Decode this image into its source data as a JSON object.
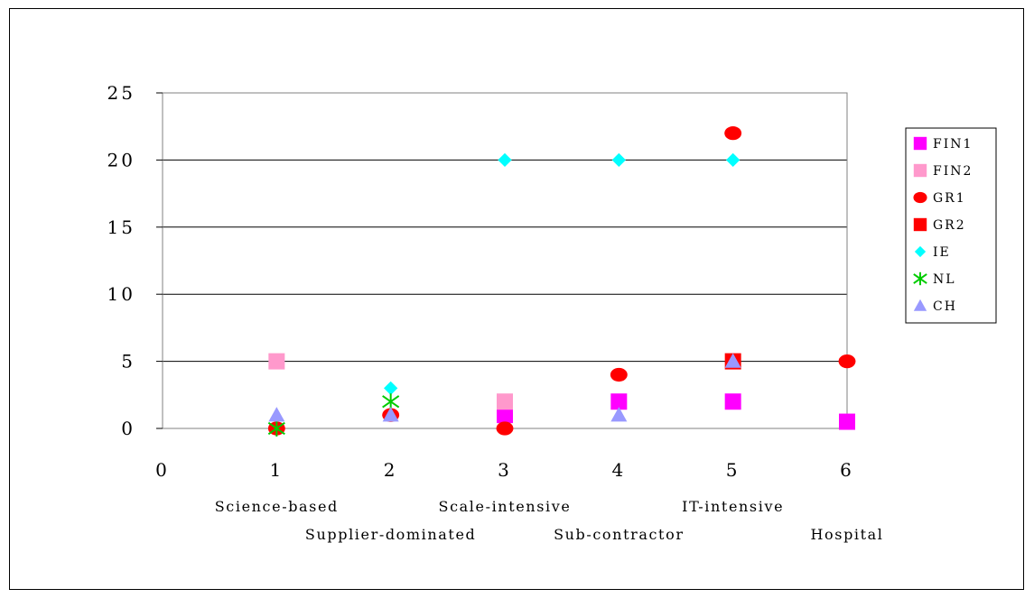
{
  "chart_data": {
    "type": "scatter",
    "title": "",
    "xlabel": "",
    "ylabel": "",
    "xlim": [
      0,
      6
    ],
    "ylim": [
      0,
      25
    ],
    "x_ticks": [
      0,
      1,
      2,
      3,
      4,
      5,
      6
    ],
    "y_ticks": [
      0,
      5,
      10,
      15,
      20,
      25
    ],
    "grid": "horizontal",
    "legend_position": "right",
    "category_labels": [
      {
        "x": 1,
        "label": "Science-based",
        "row": 1
      },
      {
        "x": 2,
        "label": "Supplier-dominated",
        "row": 2
      },
      {
        "x": 3,
        "label": "Scale-intensive",
        "row": 1
      },
      {
        "x": 4,
        "label": "Sub-contractor",
        "row": 2
      },
      {
        "x": 5,
        "label": "IT-intensive",
        "row": 1
      },
      {
        "x": 6,
        "label": "Hospital",
        "row": 2
      }
    ],
    "series": [
      {
        "name": "FIN1",
        "marker": "square",
        "color": "#ff00ff",
        "points": [
          [
            3,
            1
          ],
          [
            4,
            2
          ],
          [
            5,
            2
          ],
          [
            6,
            0.5
          ]
        ]
      },
      {
        "name": "FIN2",
        "marker": "square",
        "color": "#ff99cc",
        "points": [
          [
            1,
            5
          ],
          [
            3,
            2
          ]
        ]
      },
      {
        "name": "GR1",
        "marker": "circle",
        "color": "#ff0000",
        "points": [
          [
            1,
            0
          ],
          [
            2,
            1
          ],
          [
            3,
            0
          ],
          [
            4,
            4
          ],
          [
            5,
            22
          ],
          [
            6,
            5
          ]
        ]
      },
      {
        "name": "GR2",
        "marker": "square",
        "color": "#ff0000",
        "points": [
          [
            5,
            5
          ]
        ]
      },
      {
        "name": "IE",
        "marker": "diamond",
        "color": "#00ffff",
        "points": [
          [
            2,
            3
          ],
          [
            3,
            20
          ],
          [
            4,
            20
          ],
          [
            5,
            20
          ]
        ]
      },
      {
        "name": "NL",
        "marker": "asterisk",
        "color": "#00cc00",
        "points": [
          [
            1,
            0
          ],
          [
            2,
            2
          ]
        ]
      },
      {
        "name": "CH",
        "marker": "triangle",
        "color": "#9999ff",
        "points": [
          [
            1,
            1
          ],
          [
            2,
            1
          ],
          [
            4,
            1
          ],
          [
            5,
            5
          ]
        ]
      }
    ]
  }
}
